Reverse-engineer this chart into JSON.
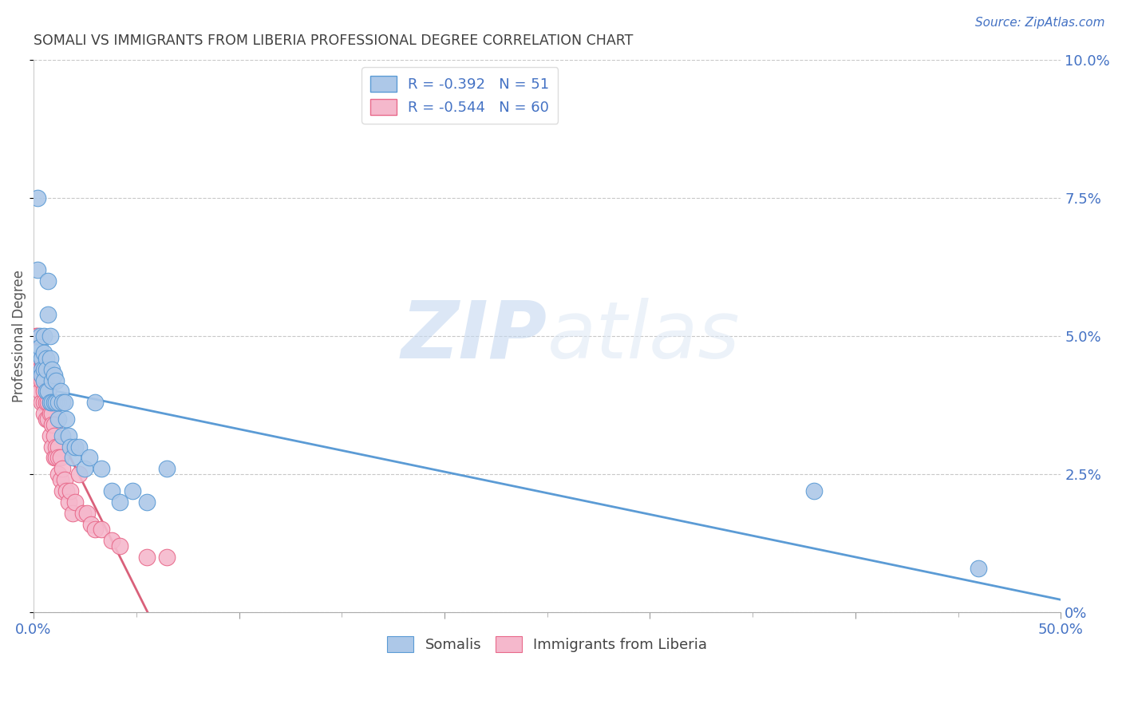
{
  "title": "SOMALI VS IMMIGRANTS FROM LIBERIA PROFESSIONAL DEGREE CORRELATION CHART",
  "source": "Source: ZipAtlas.com",
  "ylabel": "Professional Degree",
  "ylabel_right_ticks": [
    "0%",
    "2.5%",
    "5.0%",
    "7.5%",
    "10.0%"
  ],
  "ylabel_right_vals": [
    0.0,
    0.025,
    0.05,
    0.075,
    0.1
  ],
  "xlim": [
    0.0,
    0.5
  ],
  "ylim": [
    0.0,
    0.1
  ],
  "somali_R": -0.392,
  "somali_N": 51,
  "liberia_R": -0.544,
  "liberia_N": 60,
  "somali_color": "#adc8e8",
  "liberia_color": "#f5b8cc",
  "somali_edge_color": "#5b9bd5",
  "liberia_edge_color": "#e8698a",
  "somali_line_color": "#5b9bd5",
  "liberia_line_color": "#d9607a",
  "background_color": "#ffffff",
  "grid_color": "#c8c8c8",
  "title_color": "#404040",
  "axis_label_color": "#4472c4",
  "watermark_color": "#ddeeff",
  "somali_x": [
    0.001,
    0.002,
    0.002,
    0.003,
    0.003,
    0.004,
    0.004,
    0.004,
    0.005,
    0.005,
    0.005,
    0.005,
    0.006,
    0.006,
    0.006,
    0.007,
    0.007,
    0.007,
    0.008,
    0.008,
    0.008,
    0.009,
    0.009,
    0.009,
    0.01,
    0.01,
    0.011,
    0.011,
    0.012,
    0.012,
    0.013,
    0.014,
    0.014,
    0.015,
    0.016,
    0.017,
    0.018,
    0.019,
    0.02,
    0.022,
    0.025,
    0.027,
    0.03,
    0.033,
    0.038,
    0.042,
    0.048,
    0.055,
    0.065,
    0.38,
    0.46
  ],
  "somali_y": [
    0.047,
    0.075,
    0.062,
    0.05,
    0.048,
    0.046,
    0.044,
    0.043,
    0.05,
    0.047,
    0.044,
    0.042,
    0.046,
    0.044,
    0.04,
    0.06,
    0.054,
    0.04,
    0.05,
    0.046,
    0.038,
    0.044,
    0.042,
    0.038,
    0.043,
    0.038,
    0.042,
    0.038,
    0.038,
    0.035,
    0.04,
    0.038,
    0.032,
    0.038,
    0.035,
    0.032,
    0.03,
    0.028,
    0.03,
    0.03,
    0.026,
    0.028,
    0.038,
    0.026,
    0.022,
    0.02,
    0.022,
    0.02,
    0.026,
    0.022,
    0.008
  ],
  "liberia_x": [
    0.001,
    0.001,
    0.002,
    0.002,
    0.002,
    0.002,
    0.003,
    0.003,
    0.003,
    0.003,
    0.004,
    0.004,
    0.004,
    0.004,
    0.005,
    0.005,
    0.005,
    0.005,
    0.005,
    0.006,
    0.006,
    0.006,
    0.006,
    0.007,
    0.007,
    0.007,
    0.008,
    0.008,
    0.008,
    0.009,
    0.009,
    0.009,
    0.01,
    0.01,
    0.01,
    0.011,
    0.011,
    0.012,
    0.012,
    0.012,
    0.013,
    0.013,
    0.014,
    0.014,
    0.015,
    0.016,
    0.017,
    0.018,
    0.019,
    0.02,
    0.022,
    0.024,
    0.026,
    0.028,
    0.03,
    0.033,
    0.038,
    0.042,
    0.055,
    0.065
  ],
  "liberia_y": [
    0.05,
    0.045,
    0.05,
    0.046,
    0.044,
    0.042,
    0.046,
    0.044,
    0.042,
    0.04,
    0.046,
    0.044,
    0.042,
    0.038,
    0.044,
    0.042,
    0.04,
    0.038,
    0.036,
    0.044,
    0.042,
    0.038,
    0.035,
    0.04,
    0.038,
    0.035,
    0.038,
    0.036,
    0.032,
    0.036,
    0.034,
    0.03,
    0.034,
    0.032,
    0.028,
    0.03,
    0.028,
    0.03,
    0.028,
    0.025,
    0.028,
    0.024,
    0.026,
    0.022,
    0.024,
    0.022,
    0.02,
    0.022,
    0.018,
    0.02,
    0.025,
    0.018,
    0.018,
    0.016,
    0.015,
    0.015,
    0.013,
    0.012,
    0.01,
    0.01
  ]
}
